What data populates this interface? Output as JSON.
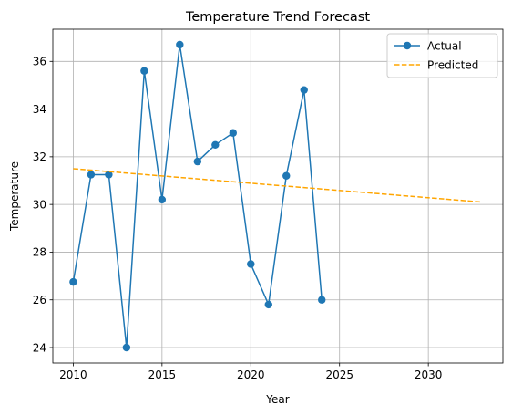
{
  "chart_data": {
    "type": "line",
    "title": "Temperature Trend Forecast",
    "xlabel": "Year",
    "ylabel": "Temperature",
    "xlim": [
      2008.85,
      2034.2
    ],
    "ylim": [
      23.35,
      37.35
    ],
    "x_ticks": [
      2010,
      2015,
      2020,
      2025,
      2030
    ],
    "y_ticks": [
      24,
      26,
      28,
      30,
      32,
      34,
      36
    ],
    "grid": true,
    "legend_position": "top-right",
    "series": [
      {
        "name": "Actual",
        "style": "line-marker",
        "color": "#1f77b4",
        "x": [
          2010,
          2011,
          2012,
          2013,
          2014,
          2015,
          2016,
          2017,
          2018,
          2019,
          2020,
          2021,
          2022,
          2023,
          2024
        ],
        "y": [
          26.75,
          31.25,
          31.25,
          24.0,
          35.6,
          30.2,
          36.7,
          31.8,
          32.5,
          33.0,
          27.5,
          25.8,
          31.2,
          34.8,
          26.0
        ]
      },
      {
        "name": "Predicted",
        "style": "dashed",
        "color": "#ffa500",
        "x": [
          2010,
          2033
        ],
        "y": [
          31.5,
          30.1
        ]
      }
    ]
  }
}
